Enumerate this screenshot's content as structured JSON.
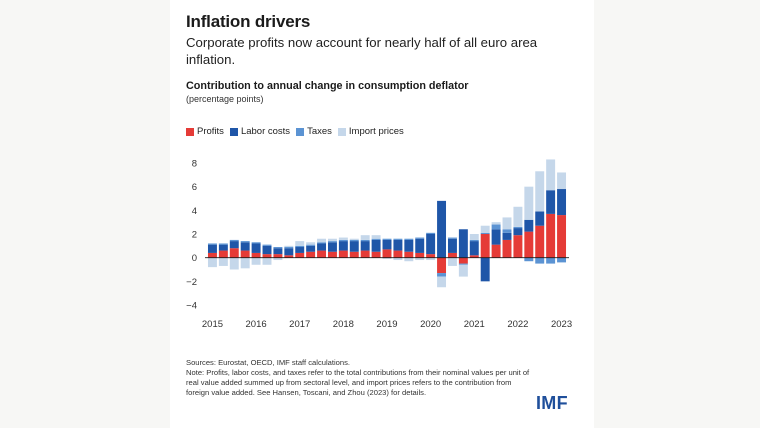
{
  "headline": "Inflation drivers",
  "subtitle": "Corporate profits now account for nearly half of all euro area inflation.",
  "source": "Sources: Eurostat, OECD, IMF staff calculations.",
  "note": "Note: Profits, labor costs, and taxes refer to the total contributions from their nominal values per unit of real value added summed up from sectoral level, and import prices refers to the contribution from foreign value added. See Hansen, Toscani, and Zhou (2023) for details.",
  "logo": "IMF",
  "colors": {
    "profits": "#e53b37",
    "labor_costs": "#1f56a8",
    "taxes": "#5b93d3",
    "import_prices": "#c5d7ea"
  },
  "chart_data": {
    "type": "bar",
    "stacked": true,
    "title": "Contribution to annual change in consumption deflator",
    "subtitle": "(percentage points)",
    "ylim": [
      -4,
      8
    ],
    "yticks": [
      "8",
      "6",
      "4",
      "2",
      "0",
      "−2",
      "−4"
    ],
    "ytick_values": [
      8,
      6,
      4,
      2,
      0,
      -2,
      -4
    ],
    "x_ticks": [
      "2015",
      "2016",
      "2017",
      "2018",
      "2019",
      "2020",
      "2021",
      "2022",
      "2023"
    ],
    "grid": false,
    "legend_position": "top-left",
    "categories": [
      "2015Q1",
      "2015Q2",
      "2015Q3",
      "2015Q4",
      "2016Q1",
      "2016Q2",
      "2016Q3",
      "2016Q4",
      "2017Q1",
      "2017Q2",
      "2017Q3",
      "2017Q4",
      "2018Q1",
      "2018Q2",
      "2018Q3",
      "2018Q4",
      "2019Q1",
      "2019Q2",
      "2019Q3",
      "2019Q4",
      "2020Q1",
      "2020Q2",
      "2020Q3",
      "2020Q4",
      "2021Q1",
      "2021Q2",
      "2021Q3",
      "2021Q4",
      "2022Q1",
      "2022Q2",
      "2022Q3",
      "2022Q4",
      "2023Q1"
    ],
    "series": [
      {
        "name": "Profits",
        "values": [
          0.4,
          0.6,
          0.8,
          0.6,
          0.4,
          0.3,
          0.3,
          0.2,
          0.4,
          0.5,
          0.6,
          0.5,
          0.6,
          0.5,
          0.6,
          0.5,
          0.7,
          0.6,
          0.5,
          0.4,
          0.3,
          -1.3,
          0.4,
          -0.5,
          0.2,
          2.0,
          1.1,
          1.5,
          1.9,
          2.2,
          2.7,
          3.7,
          3.6
        ]
      },
      {
        "name": "Labor costs",
        "values": [
          0.7,
          0.5,
          0.6,
          0.7,
          0.8,
          0.7,
          0.5,
          0.6,
          0.5,
          0.5,
          0.6,
          0.8,
          0.8,
          0.9,
          0.8,
          1.0,
          0.8,
          0.9,
          1.0,
          1.2,
          1.7,
          4.8,
          1.2,
          2.4,
          1.2,
          -2.0,
          1.3,
          0.6,
          0.6,
          1.0,
          1.2,
          2.0,
          2.2
        ]
      },
      {
        "name": "Taxes",
        "values": [
          0.1,
          0.1,
          0.1,
          0.1,
          0.1,
          0.1,
          0.1,
          0.1,
          0.1,
          0.1,
          0.1,
          0.1,
          0.1,
          0.1,
          0.1,
          0.1,
          0.1,
          0.1,
          0.1,
          0.1,
          0.1,
          -0.3,
          0.1,
          -0.1,
          0.1,
          0.1,
          0.4,
          0.3,
          0.1,
          -0.3,
          -0.5,
          -0.5,
          -0.4
        ]
      },
      {
        "name": "Import prices",
        "values": [
          -0.8,
          -0.7,
          -1.0,
          -0.9,
          -0.6,
          -0.6,
          -0.2,
          0.1,
          0.4,
          0.2,
          0.3,
          0.2,
          0.2,
          0.1,
          0.4,
          0.3,
          -0.1,
          -0.2,
          -0.3,
          -0.2,
          -0.2,
          -0.9,
          -0.7,
          -1.0,
          0.5,
          0.6,
          0.2,
          1.0,
          1.7,
          2.8,
          3.4,
          2.6,
          1.4
        ]
      }
    ]
  }
}
